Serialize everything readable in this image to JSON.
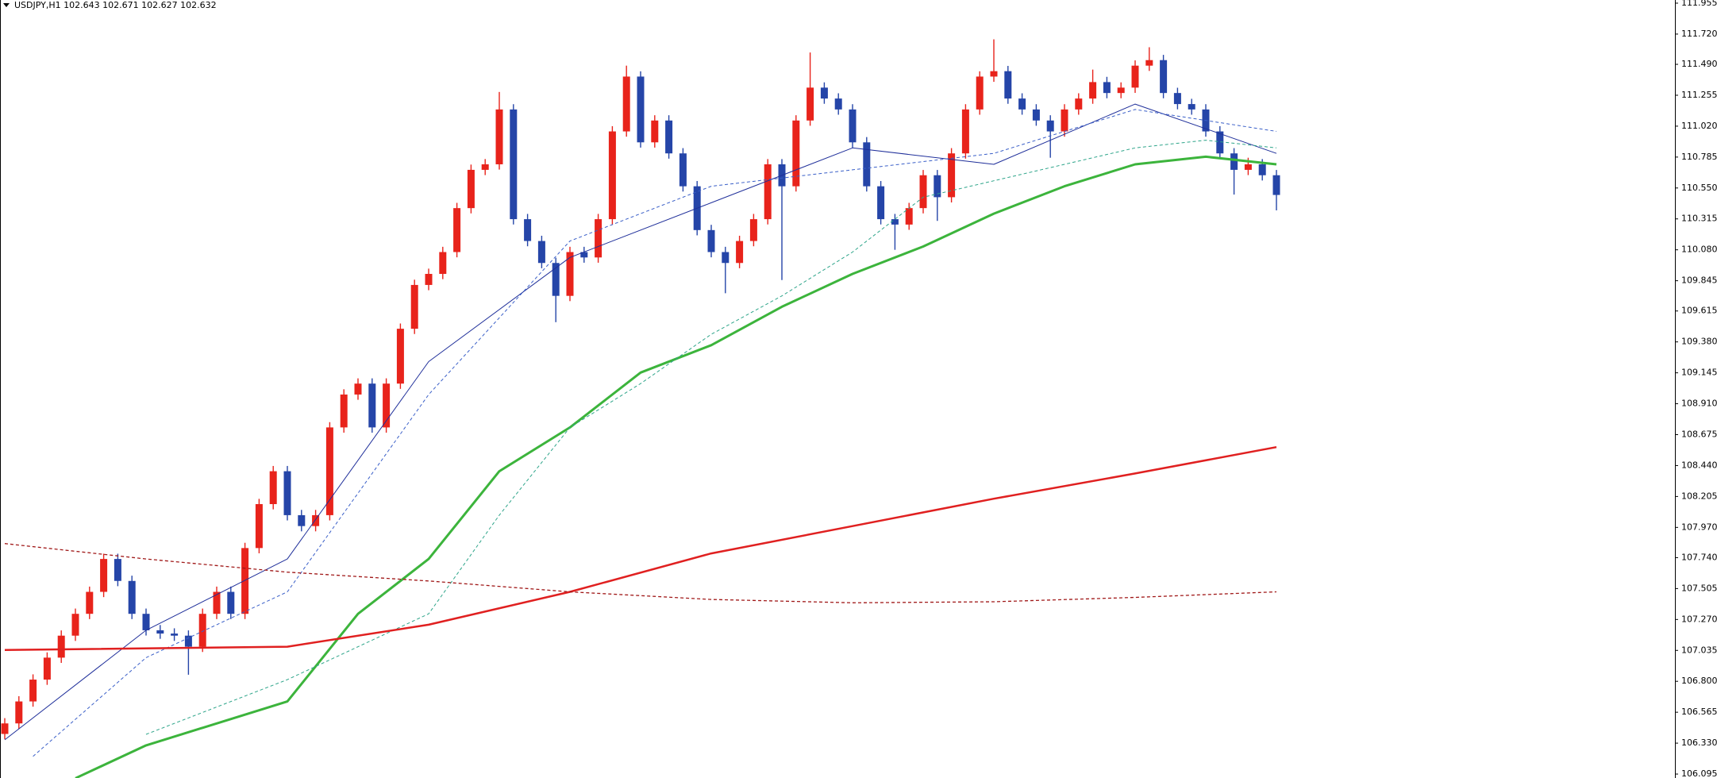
{
  "chart_data": {
    "type": "candlestick",
    "title": "USDJPY,H1  102.643 102.671 102.627 102.632",
    "up_color": "#e8231b",
    "down_color": "#2545a8",
    "ylim": [
      106.065,
      111.979
    ],
    "yticks": [
      111.955,
      {
        "value": 111.72,
        "label": "111.720"
      },
      {
        "value": 111.49,
        "label": "111.490"
      },
      111.255,
      {
        "value": 111.02,
        "label": "111.020"
      },
      110.785,
      {
        "value": 110.55,
        "label": "110.550"
      },
      110.315,
      {
        "value": 110.08,
        "label": "110.080"
      },
      109.845,
      109.615,
      {
        "value": 109.38,
        "label": "109.380"
      },
      109.145,
      {
        "value": 108.91,
        "label": "108.910"
      },
      108.675,
      {
        "value": 108.44,
        "label": "108.440"
      },
      108.205,
      {
        "value": 107.97,
        "label": "107.970"
      },
      {
        "value": 107.74,
        "label": "107.740"
      },
      107.505,
      {
        "value": 107.27,
        "label": "107.270"
      },
      107.035,
      {
        "value": 106.8,
        "label": "106.800"
      },
      106.565,
      {
        "value": 106.33,
        "label": "106.330"
      },
      106.095
    ],
    "open": [
      106.4,
      106.48,
      106.647,
      106.813,
      106.98,
      107.147,
      107.313,
      107.48,
      107.73,
      107.563,
      107.313,
      107.188,
      107.163,
      107.147,
      107.063,
      107.313,
      107.48,
      107.313,
      107.813,
      108.147,
      108.397,
      108.063,
      107.98,
      108.063,
      108.73,
      108.98,
      109.063,
      108.73,
      109.063,
      109.48,
      109.813,
      109.897,
      110.063,
      110.397,
      110.688,
      110.73,
      111.147,
      110.313,
      110.147,
      109.98,
      109.73,
      110.063,
      110.022,
      110.313,
      110.98,
      111.397,
      110.897,
      111.063,
      110.813,
      110.563,
      110.23,
      110.063,
      109.98,
      110.147,
      110.313,
      110.73,
      110.563,
      111.063,
      111.313,
      111.23,
      111.147,
      110.897,
      110.563,
      110.313,
      110.272,
      110.397,
      110.647,
      110.48,
      110.813,
      111.147,
      111.397,
      111.438,
      111.23,
      111.147,
      111.063,
      110.98,
      111.147,
      111.23,
      111.355,
      111.272,
      111.313,
      111.48,
      111.522,
      111.272,
      111.188,
      111.147,
      110.98,
      110.813,
      110.688,
      110.73,
      110.647
    ],
    "high": [
      106.52,
      106.687,
      106.853,
      107.02,
      107.187,
      107.353,
      107.52,
      107.77,
      107.77,
      107.603,
      107.353,
      107.228,
      107.203,
      107.187,
      107.353,
      107.52,
      107.52,
      107.853,
      108.187,
      108.437,
      108.437,
      108.103,
      108.103,
      108.77,
      109.02,
      109.103,
      109.103,
      109.103,
      109.52,
      109.853,
      109.937,
      110.103,
      110.437,
      110.728,
      110.77,
      111.28,
      111.187,
      110.353,
      110.187,
      110.02,
      110.103,
      110.103,
      110.353,
      111.02,
      111.48,
      111.437,
      111.103,
      111.103,
      110.853,
      110.603,
      110.27,
      110.103,
      110.187,
      110.353,
      110.77,
      110.77,
      111.103,
      111.58,
      111.353,
      111.27,
      111.187,
      110.937,
      110.603,
      110.353,
      110.437,
      110.687,
      110.687,
      110.853,
      111.187,
      111.437,
      111.68,
      111.478,
      111.27,
      111.187,
      111.103,
      111.187,
      111.27,
      111.45,
      111.395,
      111.353,
      111.52,
      111.62,
      111.562,
      111.312,
      111.228,
      111.187,
      111.02,
      110.853,
      110.78,
      110.77,
      110.687
    ],
    "low": [
      106.36,
      106.44,
      106.607,
      106.773,
      106.94,
      107.107,
      107.273,
      107.44,
      107.523,
      107.273,
      107.148,
      107.123,
      107.107,
      106.85,
      107.023,
      107.273,
      107.273,
      107.273,
      107.773,
      108.107,
      108.023,
      107.94,
      107.94,
      108.023,
      108.69,
      108.94,
      108.69,
      108.69,
      109.023,
      109.44,
      109.773,
      109.857,
      110.023,
      110.357,
      110.648,
      110.69,
      110.273,
      110.107,
      109.94,
      109.53,
      109.69,
      109.982,
      109.982,
      110.273,
      110.94,
      110.857,
      110.857,
      110.773,
      110.523,
      110.19,
      110.023,
      109.75,
      109.94,
      110.107,
      110.273,
      109.85,
      110.523,
      111.023,
      111.19,
      111.107,
      110.857,
      110.523,
      110.273,
      110.08,
      110.232,
      110.357,
      110.3,
      110.44,
      110.773,
      111.107,
      111.357,
      111.19,
      111.107,
      111.023,
      110.78,
      110.94,
      111.107,
      111.19,
      111.232,
      111.232,
      111.273,
      111.44,
      111.232,
      111.148,
      111.107,
      110.94,
      110.773,
      110.5,
      110.648,
      110.607,
      110.38
    ],
    "close": [
      106.48,
      106.647,
      106.813,
      106.98,
      107.147,
      107.313,
      107.48,
      107.73,
      107.563,
      107.313,
      107.188,
      107.163,
      107.147,
      107.063,
      107.313,
      107.48,
      107.313,
      107.813,
      108.147,
      108.397,
      108.063,
      107.98,
      108.063,
      108.73,
      108.98,
      109.063,
      108.73,
      109.063,
      109.48,
      109.813,
      109.897,
      110.063,
      110.397,
      110.688,
      110.73,
      111.147,
      110.313,
      110.147,
      109.98,
      109.73,
      110.063,
      110.022,
      110.313,
      110.98,
      111.397,
      110.897,
      111.063,
      110.813,
      110.563,
      110.23,
      110.063,
      109.98,
      110.147,
      110.313,
      110.73,
      110.563,
      111.063,
      111.313,
      111.23,
      111.147,
      110.897,
      110.563,
      110.313,
      110.272,
      110.397,
      110.647,
      110.48,
      110.813,
      111.147,
      111.397,
      111.438,
      111.23,
      111.147,
      111.063,
      110.98,
      111.147,
      111.23,
      111.355,
      111.272,
      111.313,
      111.48,
      111.522,
      111.272,
      111.188,
      111.147,
      110.98,
      110.813,
      110.688,
      110.73,
      110.647,
      110.497
    ],
    "lines": [
      {
        "color": "#1f2f9a",
        "width": 1,
        "dashed": false,
        "x": [
          0,
          10,
          20,
          30,
          40,
          50,
          60,
          70,
          80,
          90
        ],
        "values": [
          106.355,
          107.188,
          107.73,
          109.23,
          110.022,
          110.438,
          110.855,
          110.73,
          111.188,
          110.813
        ]
      },
      {
        "color": "#3a5fc8",
        "width": 1,
        "dashed": true,
        "x": [
          2,
          10,
          20,
          30,
          40,
          50,
          60,
          70,
          80,
          90
        ],
        "values": [
          106.23,
          106.98,
          107.48,
          108.98,
          110.147,
          110.563,
          110.688,
          110.813,
          111.147,
          110.98
        ]
      },
      {
        "color": "#3cb43c",
        "width": 3,
        "dashed": false,
        "x": [
          5,
          10,
          20,
          25,
          30,
          35,
          40,
          45,
          50,
          55,
          60,
          65,
          70,
          75,
          80,
          85,
          90
        ],
        "values": [
          106.063,
          106.313,
          106.647,
          107.313,
          107.73,
          108.397,
          108.73,
          109.147,
          109.355,
          109.647,
          109.897,
          110.105,
          110.355,
          110.563,
          110.73,
          110.788,
          110.73
        ]
      },
      {
        "color": "#2ea58a",
        "width": 1,
        "dashed": true,
        "x": [
          10,
          20,
          30,
          35,
          40,
          45,
          50,
          55,
          60,
          65,
          70,
          75,
          80,
          85,
          90
        ],
        "values": [
          106.397,
          106.813,
          107.313,
          108.063,
          108.73,
          109.063,
          109.438,
          109.73,
          110.063,
          110.48,
          110.605,
          110.73,
          110.855,
          110.913,
          110.855
        ]
      },
      {
        "color": "#e02020",
        "width": 2.5,
        "dashed": false,
        "x": [
          0,
          20,
          30,
          40,
          50,
          60,
          70,
          80,
          90
        ],
        "values": [
          107.038,
          107.063,
          107.23,
          107.48,
          107.772,
          107.98,
          108.188,
          108.38,
          108.58
        ]
      },
      {
        "color": "#a01818",
        "width": 1.3,
        "dashed": true,
        "x": [
          0,
          10,
          20,
          30,
          40,
          50,
          60,
          70,
          80,
          90
        ],
        "values": [
          107.847,
          107.73,
          107.63,
          107.563,
          107.48,
          107.422,
          107.397,
          107.405,
          107.438,
          107.48
        ]
      }
    ]
  }
}
